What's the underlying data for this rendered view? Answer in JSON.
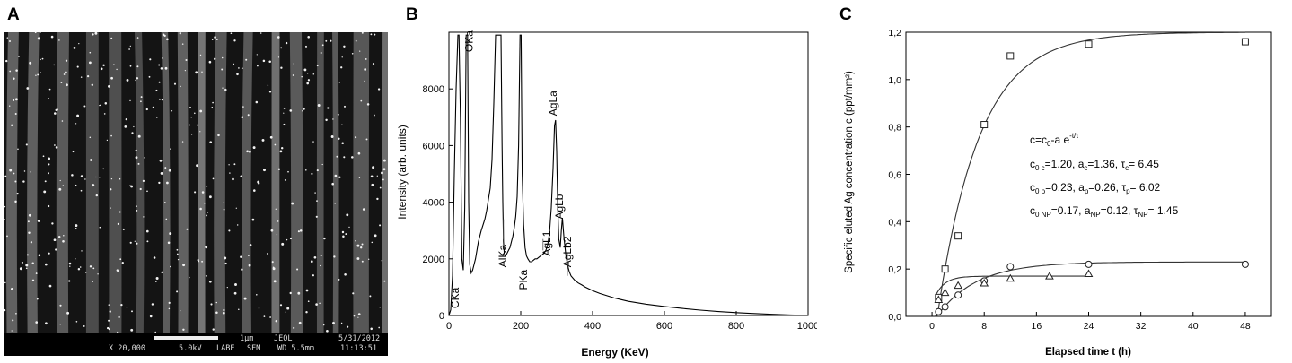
{
  "panels": {
    "a": "A",
    "b": "B",
    "c": "C"
  },
  "sem": {
    "scale": "1μm",
    "brand": "JEOL",
    "date": "5/31/2012",
    "mag": "X 20,000",
    "kv": "5.0kV",
    "detector": "LABE",
    "mode": "SEM",
    "wd": "WD 5.5mm",
    "time": "11:13:51"
  },
  "chart_data": [
    {
      "type": "line",
      "panel": "B",
      "xlabel": "Energy (KeV)",
      "ylabel": "Intensity (arb. units)",
      "xlim": [
        0,
        1000
      ],
      "ylim": [
        0,
        10000
      ],
      "xticks": [
        0,
        200,
        400,
        600,
        800,
        1000
      ],
      "yticks": [
        0,
        2000,
        4000,
        6000,
        8000
      ],
      "grid": false,
      "series": [
        {
          "x": [
            0,
            5,
            10,
            15,
            20,
            25,
            28,
            32,
            36,
            40,
            44,
            48,
            52,
            55,
            58,
            62,
            66,
            70,
            74,
            78,
            82,
            86,
            90,
            95,
            100,
            105,
            110,
            115,
            120,
            125,
            130,
            135,
            140,
            145,
            148,
            150,
            152,
            154,
            158,
            162,
            166,
            170,
            174,
            178,
            182,
            186,
            190,
            194,
            198,
            201,
            204,
            208,
            212,
            216,
            220,
            225,
            230,
            235,
            240,
            245,
            250,
            255,
            260,
            265,
            270,
            275,
            280,
            285,
            290,
            294,
            297,
            300,
            303,
            306,
            310,
            313,
            316,
            320,
            325,
            330,
            335,
            340,
            350,
            360,
            370,
            380,
            400,
            420,
            440,
            460,
            480,
            500,
            550,
            600,
            650,
            700,
            750,
            800,
            850,
            900,
            950,
            980
          ],
          "y": [
            0,
            200,
            1400,
            5000,
            8000,
            9900,
            9900,
            7000,
            2000,
            1600,
            3800,
            9900,
            9900,
            4000,
            1800,
            1500,
            1600,
            1800,
            2000,
            2300,
            2600,
            2800,
            3000,
            3200,
            3400,
            3700,
            4100,
            4500,
            5500,
            7500,
            9900,
            9900,
            9900,
            9900,
            6000,
            4000,
            2600,
            2200,
            2100,
            2200,
            2300,
            2400,
            2600,
            2800,
            3100,
            3500,
            4200,
            6000,
            9900,
            9900,
            5000,
            3200,
            2400,
            2100,
            2000,
            1900,
            1900,
            1950,
            2000,
            2000,
            2050,
            2100,
            2150,
            2200,
            2300,
            2500,
            2900,
            3800,
            5200,
            6700,
            6900,
            5800,
            3800,
            2700,
            2400,
            3000,
            3450,
            2800,
            2200,
            1800,
            1550,
            1400,
            1250,
            1150,
            1080,
            1000,
            880,
            780,
            700,
            620,
            560,
            500,
            400,
            320,
            250,
            190,
            140,
            100,
            70,
            40,
            20,
            10
          ]
        }
      ],
      "annotations": [
        "CKa",
        "OKa",
        "AlKa",
        "PKa",
        "AgL1",
        "AgLa",
        "AgLb",
        "AgLb2"
      ]
    },
    {
      "type": "scatter",
      "panel": "C",
      "xlabel": "Elapsed time t (h)",
      "ylabel": "Specific eluted Ag concentration c (ppt/mm²)",
      "xlim": [
        -4,
        52
      ],
      "ylim": [
        0,
        1.2
      ],
      "xticks": [
        "0",
        "8",
        "16",
        "24",
        "32",
        "40",
        "48"
      ],
      "yticks": [
        "0,0",
        "0,2",
        "0,4",
        "0,6",
        "0,8",
        "1,0",
        "1,2"
      ],
      "grid": false,
      "equation": "c=c0-a e-t/τ",
      "fit_params": [
        {
          "c0_sub": "c",
          "c0": "1.20",
          "a_sub": "c",
          "a": "1.36",
          "tau_sub": "c",
          "tau": "6.45"
        },
        {
          "c0_sub": "p",
          "c0": "0.23",
          "a_sub": "p",
          "a": "0.26",
          "tau_sub": "p",
          "tau": "6.02"
        },
        {
          "c0_sub": "NP",
          "c0": "0.17",
          "a_sub": "NP",
          "a": "0.12",
          "tau_sub": "NP",
          "tau": "1.45"
        }
      ],
      "series": [
        {
          "marker": "square",
          "x": [
            1,
            2,
            4,
            8,
            12,
            24,
            48
          ],
          "y": [
            0.08,
            0.2,
            0.34,
            0.81,
            1.1,
            1.15,
            1.16
          ],
          "c0": 1.2,
          "a": 1.36,
          "tau": 6.45
        },
        {
          "marker": "circle",
          "x": [
            1,
            2,
            4,
            8,
            12,
            24,
            48
          ],
          "y": [
            0.02,
            0.04,
            0.09,
            0.15,
            0.21,
            0.22,
            0.22
          ],
          "c0": 0.23,
          "a": 0.26,
          "tau": 6.02
        },
        {
          "marker": "triangle",
          "x": [
            1,
            2,
            4,
            8,
            12,
            18,
            24
          ],
          "y": [
            0.07,
            0.1,
            0.13,
            0.14,
            0.16,
            0.17,
            0.18
          ],
          "c0": 0.17,
          "a": 0.12,
          "tau": 1.45
        }
      ]
    }
  ]
}
